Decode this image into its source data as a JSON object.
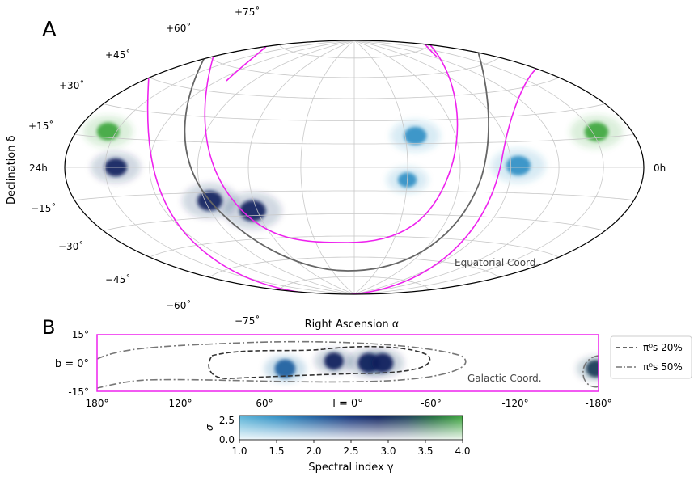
{
  "panel_a": {
    "label": "A",
    "ylabel": "Declination δ",
    "xlabel": "Right Ascension α",
    "dec_ticks": [
      "+75˚",
      "+60˚",
      "+45˚",
      "+30˚",
      "+15˚",
      "24h",
      "−15˚",
      "−30˚",
      "−45˚",
      "−60˚",
      "−75˚"
    ],
    "ra_right_label": "0h",
    "coord_note": "Equatorial Coord."
  },
  "panel_b": {
    "label": "B",
    "y_ticks": [
      "15°",
      "b = 0°",
      "-15°"
    ],
    "x_ticks": [
      "180°",
      "120°",
      "60°",
      "l = 0°",
      "-60°",
      "-120°",
      "-180°"
    ],
    "coord_note": "Galactic Coord."
  },
  "legend": {
    "items": [
      {
        "label": "π⁰s 20%",
        "style": "dashed",
        "color": "#333333"
      },
      {
        "label": "π⁰s 50%",
        "style": "dashdot",
        "color": "#777777"
      }
    ]
  },
  "colorbar": {
    "ylabel": "σ",
    "y_ticks": [
      "2.5",
      "0.0"
    ],
    "x_ticks": [
      "1.0",
      "1.5",
      "2.0",
      "2.5",
      "3.0",
      "3.5",
      "4.0"
    ],
    "xlabel": "Spectral index γ",
    "colors": [
      "#5ab4d8",
      "#3a9fcc",
      "#2577b0",
      "#174f93",
      "#0d2d72",
      "#0a1e5c",
      "#18305e",
      "#1a4a4a",
      "#1b6a3a",
      "#2a8a2a",
      "#3aa53a"
    ]
  },
  "chart_data": [
    {
      "type": "heatmap",
      "title": "",
      "projection": "hammer-aitoff",
      "xlabel": "Right Ascension α",
      "ylabel": "Declination δ",
      "ylim": [
        -90,
        90
      ],
      "grid": true,
      "hotspots": [
        {
          "ra_h": 9.6,
          "dec": 20,
          "gamma": 1.3,
          "sigma": 2.0
        },
        {
          "ra_h": 5.7,
          "dec": 1,
          "gamma": 1.3,
          "sigma": 2.3
        },
        {
          "ra_h": 10.0,
          "dec": -8,
          "gamma": 1.5,
          "sigma": 1.4
        },
        {
          "ra_h": 16.2,
          "dec": -27,
          "gamma": 2.8,
          "sigma": 2.6
        },
        {
          "ra_h": 17.8,
          "dec": -20,
          "gamma": 2.9,
          "sigma": 2.4
        },
        {
          "ra_h": 21.5,
          "dec": 0,
          "gamma": 2.9,
          "sigma": 2.0
        },
        {
          "ra_h": 1.8,
          "dec": 18,
          "gamma": 3.8,
          "sigma": 2.2
        },
        {
          "ra_h": 22.4,
          "dec": 18,
          "gamma": 3.8,
          "sigma": 2.0
        }
      ]
    },
    {
      "type": "heatmap",
      "title": "",
      "xlabel": "l",
      "ylabel": "b",
      "xlim": [
        180,
        -180
      ],
      "ylim": [
        -15,
        15
      ],
      "x_tick_values": [
        180,
        120,
        60,
        0,
        -60,
        -120,
        -180
      ],
      "y_tick_values": [
        15,
        0,
        -15
      ],
      "hotspots": [
        {
          "l": 45,
          "b": -3,
          "gamma": 2.0,
          "sigma": 2.3
        },
        {
          "l": 10,
          "b": 1,
          "gamma": 2.9,
          "sigma": 2.0
        },
        {
          "l": -15,
          "b": 0,
          "gamma": 2.9,
          "sigma": 2.5
        },
        {
          "l": -25,
          "b": 0,
          "gamma": 2.8,
          "sigma": 2.4
        },
        {
          "l": -178,
          "b": -3,
          "gamma": 3.2,
          "sigma": 2.0
        }
      ]
    }
  ]
}
